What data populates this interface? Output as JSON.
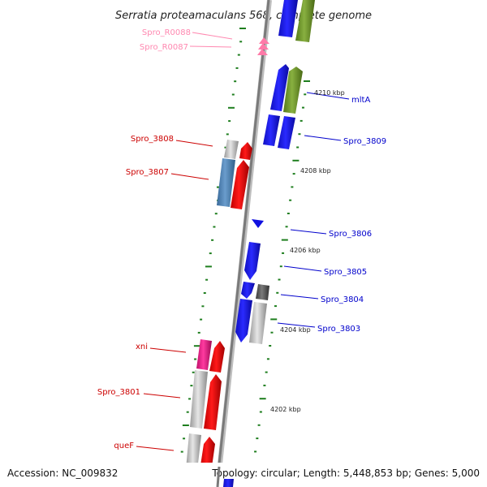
{
  "title": "Serratia proteamaculans 568, complete genome",
  "footer": {
    "accession": "Accession: NC_009832",
    "topology": "Topology: circular; Length: 5,448,853 bp; Genes: 5,000"
  },
  "colors": {
    "forward_label": "#0000cc",
    "reverse_label": "#cc0000",
    "rna_label": "#ff88b0",
    "tick": "#1e7e1e",
    "backbone": "#888888"
  },
  "kbp_labels": [
    "4210 kbp",
    "4208 kbp",
    "4206 kbp",
    "4204 kbp",
    "4202 kbp"
  ],
  "gene_labels_right": [
    "mltA",
    "Spro_3809",
    "Spro_3806",
    "Spro_3805",
    "Spro_3804",
    "Spro_3803"
  ],
  "gene_labels_left": [
    "Spro_R0088",
    "Spro_R0087",
    "Spro_3808",
    "Spro_3807",
    "xni",
    "Spro_3801",
    "queF"
  ]
}
